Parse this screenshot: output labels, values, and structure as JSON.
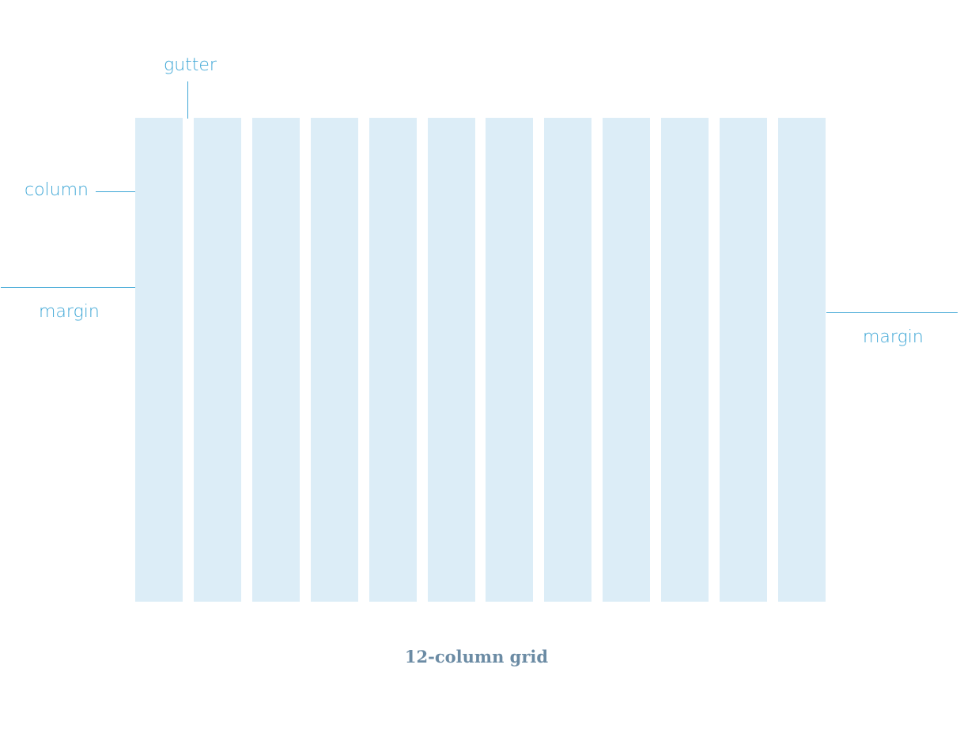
{
  "diagram": {
    "labels": {
      "gutter": "gutter",
      "column": "column",
      "margin_left": "margin",
      "margin_right": "margin"
    },
    "column_count": 12,
    "caption": "12-column grid",
    "colors": {
      "column_fill": "#dcedf7",
      "annotation": "#3fa7d6",
      "caption": "#6b8ba4",
      "background": "#ffffff"
    }
  }
}
